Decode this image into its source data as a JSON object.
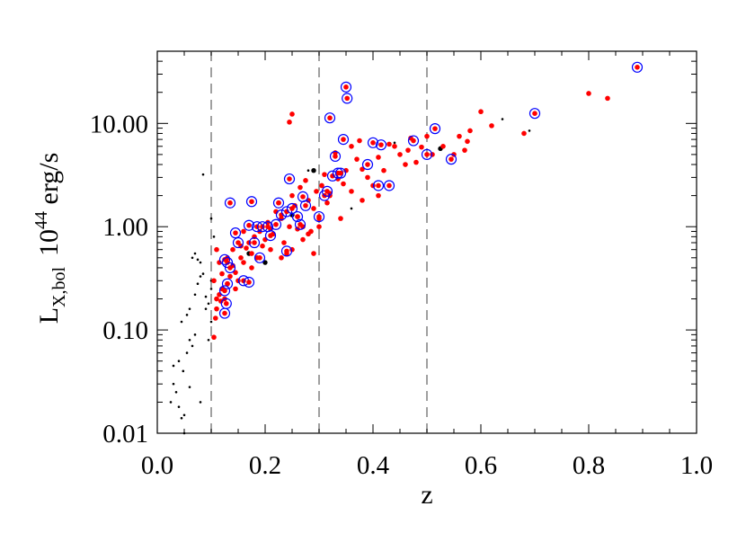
{
  "chart_data": {
    "type": "scatter",
    "title": "",
    "xlabel": "z",
    "ylabel": {
      "main": "L",
      "subscript": "X,bol",
      "unit_base": "10",
      "unit_exp": "44",
      "unit_rest": " erg/s"
    },
    "xlim": [
      0.0,
      1.0
    ],
    "ylim": [
      0.01,
      50
    ],
    "yscale": "log",
    "xticks": [
      0.0,
      0.2,
      0.4,
      0.6,
      0.8,
      1.0
    ],
    "xtick_labels": [
      "0.0",
      "0.2",
      "0.4",
      "0.6",
      "0.8",
      "1.0"
    ],
    "yticks": [
      0.01,
      0.1,
      1.0,
      10.0
    ],
    "ytick_labels": [
      "0.01",
      "0.10",
      "1.00",
      "10.00"
    ],
    "vlines": [
      0.1,
      0.3,
      0.5
    ],
    "grid": false,
    "legend": "none",
    "colors": {
      "red_points": "#ff0000",
      "circle_markers": "#0000ff",
      "small_points": "#000000",
      "vlines": "#888888"
    },
    "series": [
      {
        "marker": "small black dot",
        "points": [
          [
            0.02,
            0.009
          ],
          [
            0.025,
            0.02
          ],
          [
            0.03,
            0.03
          ],
          [
            0.035,
            0.025
          ],
          [
            0.04,
            0.018
          ],
          [
            0.045,
            0.014
          ],
          [
            0.05,
            0.01
          ],
          [
            0.048,
            0.04
          ],
          [
            0.055,
            0.06
          ],
          [
            0.04,
            0.05
          ],
          [
            0.03,
            0.045
          ],
          [
            0.06,
            0.08
          ],
          [
            0.065,
            0.07
          ],
          [
            0.07,
            0.09
          ],
          [
            0.045,
            0.12
          ],
          [
            0.055,
            0.14
          ],
          [
            0.06,
            0.16
          ],
          [
            0.07,
            0.22
          ],
          [
            0.075,
            0.28
          ],
          [
            0.08,
            0.33
          ],
          [
            0.085,
            0.35
          ],
          [
            0.09,
            0.16
          ],
          [
            0.095,
            0.18
          ],
          [
            0.09,
            0.21
          ],
          [
            0.1,
            0.25
          ],
          [
            0.1,
            0.3
          ],
          [
            0.065,
            0.5
          ],
          [
            0.07,
            0.55
          ],
          [
            0.075,
            0.48
          ],
          [
            0.08,
            0.45
          ],
          [
            0.1,
            0.12
          ],
          [
            0.095,
            0.08
          ],
          [
            0.08,
            0.02
          ],
          [
            0.06,
            0.028
          ],
          [
            0.05,
            0.015
          ],
          [
            0.085,
            3.2
          ],
          [
            0.1,
            1.2
          ],
          [
            0.105,
            0.8
          ],
          [
            0.36,
            1.5
          ],
          [
            0.64,
            11
          ],
          [
            0.69,
            8.5
          ],
          [
            0.28,
            3.5
          ],
          [
            0.44,
            6.5
          ]
        ]
      },
      {
        "marker": "larger black dot",
        "points": [
          [
            0.29,
            3.5
          ],
          [
            0.525,
            5.7
          ],
          [
            0.2,
            0.45
          ],
          [
            0.17,
            0.55
          ],
          [
            0.25,
            1.3
          ]
        ]
      },
      {
        "marker": "red dot",
        "points": [
          [
            0.105,
            0.085
          ],
          [
            0.108,
            0.13
          ],
          [
            0.11,
            0.16
          ],
          [
            0.115,
            0.22
          ],
          [
            0.12,
            0.25
          ],
          [
            0.118,
            0.19
          ],
          [
            0.125,
            0.2
          ],
          [
            0.13,
            0.28
          ],
          [
            0.135,
            0.33
          ],
          [
            0.14,
            0.42
          ],
          [
            0.145,
            0.36
          ],
          [
            0.15,
            0.3
          ],
          [
            0.155,
            0.5
          ],
          [
            0.16,
            0.45
          ],
          [
            0.165,
            0.62
          ],
          [
            0.17,
            0.7
          ],
          [
            0.175,
            0.55
          ],
          [
            0.18,
            0.8
          ],
          [
            0.185,
            0.5
          ],
          [
            0.19,
            0.9
          ],
          [
            0.195,
            0.65
          ],
          [
            0.2,
            0.75
          ],
          [
            0.205,
            1.1
          ],
          [
            0.21,
            0.95
          ],
          [
            0.215,
            0.85
          ],
          [
            0.22,
            1.4
          ],
          [
            0.225,
            1.7
          ],
          [
            0.23,
            1.2
          ],
          [
            0.235,
            0.7
          ],
          [
            0.24,
            0.55
          ],
          [
            0.245,
            1.0
          ],
          [
            0.25,
            2.0
          ],
          [
            0.255,
            1.6
          ],
          [
            0.26,
            1.25
          ],
          [
            0.265,
            2.4
          ],
          [
            0.27,
            1.0
          ],
          [
            0.275,
            2.8
          ],
          [
            0.28,
            1.8
          ],
          [
            0.285,
            0.9
          ],
          [
            0.29,
            1.5
          ],
          [
            0.295,
            2.2
          ],
          [
            0.3,
            1.2
          ],
          [
            0.305,
            2.5
          ],
          [
            0.31,
            3.2
          ],
          [
            0.315,
            1.7
          ],
          [
            0.32,
            2.1
          ],
          [
            0.33,
            5.2
          ],
          [
            0.335,
            2.9
          ],
          [
            0.34,
            3.3
          ],
          [
            0.345,
            2.6
          ],
          [
            0.35,
            3.5
          ],
          [
            0.36,
            6.0
          ],
          [
            0.37,
            4.5
          ],
          [
            0.375,
            6.8
          ],
          [
            0.38,
            3.6
          ],
          [
            0.39,
            3.0
          ],
          [
            0.4,
            2.5
          ],
          [
            0.41,
            4.7
          ],
          [
            0.42,
            3.5
          ],
          [
            0.43,
            6.3
          ],
          [
            0.44,
            6.0
          ],
          [
            0.45,
            5.0
          ],
          [
            0.46,
            4.0
          ],
          [
            0.465,
            5.5
          ],
          [
            0.47,
            7.2
          ],
          [
            0.48,
            4.2
          ],
          [
            0.49,
            5.9
          ],
          [
            0.5,
            7.5
          ],
          [
            0.51,
            5.0
          ],
          [
            0.53,
            6.0
          ],
          [
            0.55,
            5.0
          ],
          [
            0.56,
            7.5
          ],
          [
            0.57,
            5.5
          ],
          [
            0.575,
            6.7
          ],
          [
            0.58,
            8.5
          ],
          [
            0.6,
            13
          ],
          [
            0.62,
            9.5
          ],
          [
            0.68,
            8
          ],
          [
            0.8,
            19.5
          ],
          [
            0.835,
            17.5
          ],
          [
            0.25,
            12.3
          ],
          [
            0.245,
            10.3
          ],
          [
            0.32,
            2.0
          ],
          [
            0.34,
            1.2
          ],
          [
            0.3,
            1.0
          ],
          [
            0.26,
            0.95
          ],
          [
            0.28,
            0.85
          ],
          [
            0.14,
            0.6
          ],
          [
            0.13,
            0.5
          ],
          [
            0.11,
            0.6
          ],
          [
            0.12,
            0.35
          ],
          [
            0.115,
            0.45
          ],
          [
            0.105,
            0.3
          ],
          [
            0.11,
            0.2
          ],
          [
            0.145,
            0.25
          ],
          [
            0.155,
            0.65
          ],
          [
            0.16,
            0.9
          ],
          [
            0.175,
            0.4
          ],
          [
            0.21,
            0.6
          ],
          [
            0.23,
            0.5
          ],
          [
            0.25,
            0.6
          ],
          [
            0.27,
            0.75
          ],
          [
            0.29,
            0.55
          ],
          [
            0.36,
            2.2
          ],
          [
            0.38,
            1.8
          ],
          [
            0.41,
            2.0
          ]
        ]
      },
      {
        "marker": "red dot with blue circle",
        "points": [
          [
            0.125,
            0.48
          ],
          [
            0.13,
            0.45
          ],
          [
            0.135,
            0.4
          ],
          [
            0.13,
            0.28
          ],
          [
            0.125,
            0.24
          ],
          [
            0.128,
            0.18
          ],
          [
            0.125,
            0.145
          ],
          [
            0.135,
            1.7
          ],
          [
            0.145,
            0.87
          ],
          [
            0.15,
            0.7
          ],
          [
            0.16,
            0.3
          ],
          [
            0.17,
            0.29
          ],
          [
            0.17,
            1.03
          ],
          [
            0.175,
            1.75
          ],
          [
            0.18,
            0.7
          ],
          [
            0.185,
            1.0
          ],
          [
            0.19,
            0.5
          ],
          [
            0.195,
            1.0
          ],
          [
            0.205,
            1.0
          ],
          [
            0.21,
            0.82
          ],
          [
            0.22,
            1.05
          ],
          [
            0.225,
            1.7
          ],
          [
            0.23,
            1.3
          ],
          [
            0.24,
            1.4
          ],
          [
            0.245,
            2.9
          ],
          [
            0.25,
            1.5
          ],
          [
            0.26,
            1.25
          ],
          [
            0.265,
            1.05
          ],
          [
            0.27,
            1.95
          ],
          [
            0.275,
            1.6
          ],
          [
            0.24,
            0.58
          ],
          [
            0.3,
            1.25
          ],
          [
            0.31,
            2.0
          ],
          [
            0.315,
            2.2
          ],
          [
            0.32,
            11.3
          ],
          [
            0.325,
            3.1
          ],
          [
            0.33,
            4.8
          ],
          [
            0.335,
            3.3
          ],
          [
            0.34,
            3.3
          ],
          [
            0.345,
            7.0
          ],
          [
            0.35,
            22.5
          ],
          [
            0.352,
            17.5
          ],
          [
            0.39,
            4.0
          ],
          [
            0.4,
            6.5
          ],
          [
            0.41,
            2.5
          ],
          [
            0.415,
            6.2
          ],
          [
            0.43,
            2.5
          ],
          [
            0.475,
            6.8
          ],
          [
            0.5,
            5.0
          ],
          [
            0.515,
            8.9
          ],
          [
            0.545,
            4.5
          ],
          [
            0.7,
            12.5
          ],
          [
            0.89,
            35
          ]
        ]
      }
    ]
  }
}
